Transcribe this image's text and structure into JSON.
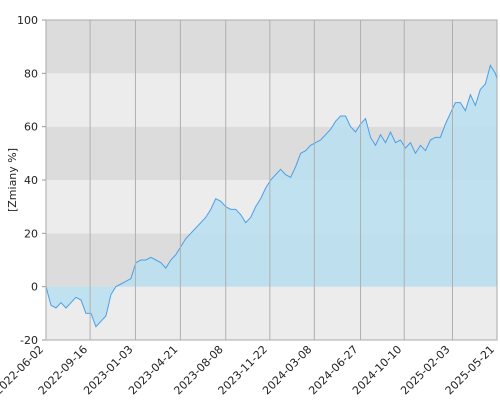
{
  "chart_data": {
    "type": "area",
    "y_label": "[Zmiany %]",
    "color": "#4a9fe8",
    "fill": "#b8dff0",
    "band_colors": [
      "#ececec",
      "#dcdcdc"
    ],
    "x": [
      "2022-06-02",
      "2022-06-14",
      "2022-06-26",
      "2022-07-08",
      "2022-07-20",
      "2022-08-01",
      "2022-08-13",
      "2022-08-25",
      "2022-09-06",
      "2022-09-18",
      "2022-09-30",
      "2022-10-12",
      "2022-10-24",
      "2022-11-05",
      "2022-11-17",
      "2022-11-29",
      "2022-12-11",
      "2022-12-23",
      "2023-01-04",
      "2023-01-16",
      "2023-01-28",
      "2023-02-09",
      "2023-02-21",
      "2023-03-05",
      "2023-03-17",
      "2023-03-29",
      "2023-04-10",
      "2023-04-22",
      "2023-05-04",
      "2023-05-16",
      "2023-05-28",
      "2023-06-09",
      "2023-06-21",
      "2023-07-03",
      "2023-07-15",
      "2023-07-27",
      "2023-08-08",
      "2023-08-20",
      "2023-09-01",
      "2023-09-13",
      "2023-09-25",
      "2023-10-07",
      "2023-10-19",
      "2023-10-31",
      "2023-11-12",
      "2023-11-24",
      "2023-12-06",
      "2023-12-18",
      "2023-12-30",
      "2024-01-11",
      "2024-01-23",
      "2024-02-04",
      "2024-02-16",
      "2024-02-28",
      "2024-03-11",
      "2024-03-23",
      "2024-04-04",
      "2024-04-16",
      "2024-04-28",
      "2024-05-10",
      "2024-05-22",
      "2024-06-03",
      "2024-06-15",
      "2024-06-27",
      "2024-07-09",
      "2024-07-21",
      "2024-08-02",
      "2024-08-14",
      "2024-08-26",
      "2024-09-07",
      "2024-09-19",
      "2024-10-01",
      "2024-10-13",
      "2024-10-25",
      "2024-11-06",
      "2024-11-18",
      "2024-11-30",
      "2024-12-12",
      "2024-12-24",
      "2025-01-05",
      "2025-01-17",
      "2025-01-29",
      "2025-02-10",
      "2025-02-22",
      "2025-03-06",
      "2025-03-18",
      "2025-03-30",
      "2025-04-11",
      "2025-04-23",
      "2025-05-05",
      "2025-05-17",
      "2025-05-21"
    ],
    "values": [
      0,
      -7,
      -8,
      -6,
      -8,
      -6,
      -4,
      -5,
      -10,
      -10,
      -15,
      -13,
      -11,
      -3,
      0,
      1,
      2,
      3,
      9,
      10,
      10,
      11,
      10,
      9,
      7,
      10,
      12,
      15,
      18,
      20,
      22,
      24,
      26,
      29,
      33,
      32,
      30,
      29,
      29,
      27,
      24,
      26,
      30,
      33,
      37,
      40,
      42,
      44,
      42,
      41,
      45,
      50,
      51,
      53,
      54,
      55,
      57,
      59,
      62,
      64,
      64,
      60,
      58,
      61,
      63,
      56,
      53,
      57,
      54,
      58,
      54,
      55,
      52,
      54,
      50,
      53,
      51,
      55,
      56,
      56,
      61,
      65,
      69,
      69,
      66,
      72,
      68,
      74,
      76,
      83,
      80,
      78
    ],
    "xlim": [
      "2022-06-02",
      "2025-05-21"
    ],
    "xticks": [
      "2022-06-02",
      "2022-09-16",
      "2023-01-03",
      "2023-04-21",
      "2023-08-08",
      "2023-11-22",
      "2024-03-08",
      "2024-06-27",
      "2024-10-10",
      "2025-02-03",
      "2025-05-21"
    ],
    "ylim": [
      -20,
      100
    ],
    "yticks": [
      -20,
      0,
      20,
      40,
      60,
      80,
      100
    ],
    "grid": true
  }
}
